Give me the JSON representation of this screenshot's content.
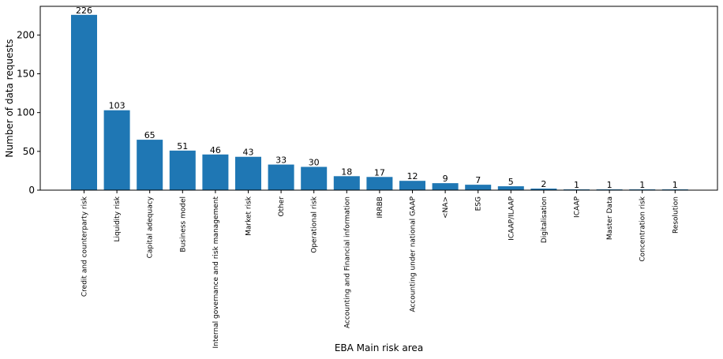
{
  "chart_data": {
    "type": "bar",
    "xlabel": "EBA Main risk area",
    "ylabel": "Number of data requests",
    "ylim": [
      0,
      237
    ],
    "yticks": [
      0,
      50,
      100,
      150,
      200
    ],
    "grid": false,
    "bar_color": "#1f77b4",
    "categories": [
      "Credit and counterparty risk",
      "Liquidity risk",
      "Capital adequacy",
      "Business model",
      "Internal governance and risk management",
      "Market risk",
      "Other",
      "Operational risk",
      "Accounting and Financial information",
      "IRRBB",
      "Accounting under national GAAP",
      "<NA>",
      "ESG",
      "ICAAP/ILAAP",
      "Digitalisation",
      "ICAAP",
      "Master Data",
      "Concentration risk",
      "Resolution"
    ],
    "values": [
      226,
      103,
      65,
      51,
      46,
      43,
      33,
      30,
      18,
      17,
      12,
      9,
      7,
      5,
      2,
      1,
      1,
      1,
      1
    ]
  }
}
